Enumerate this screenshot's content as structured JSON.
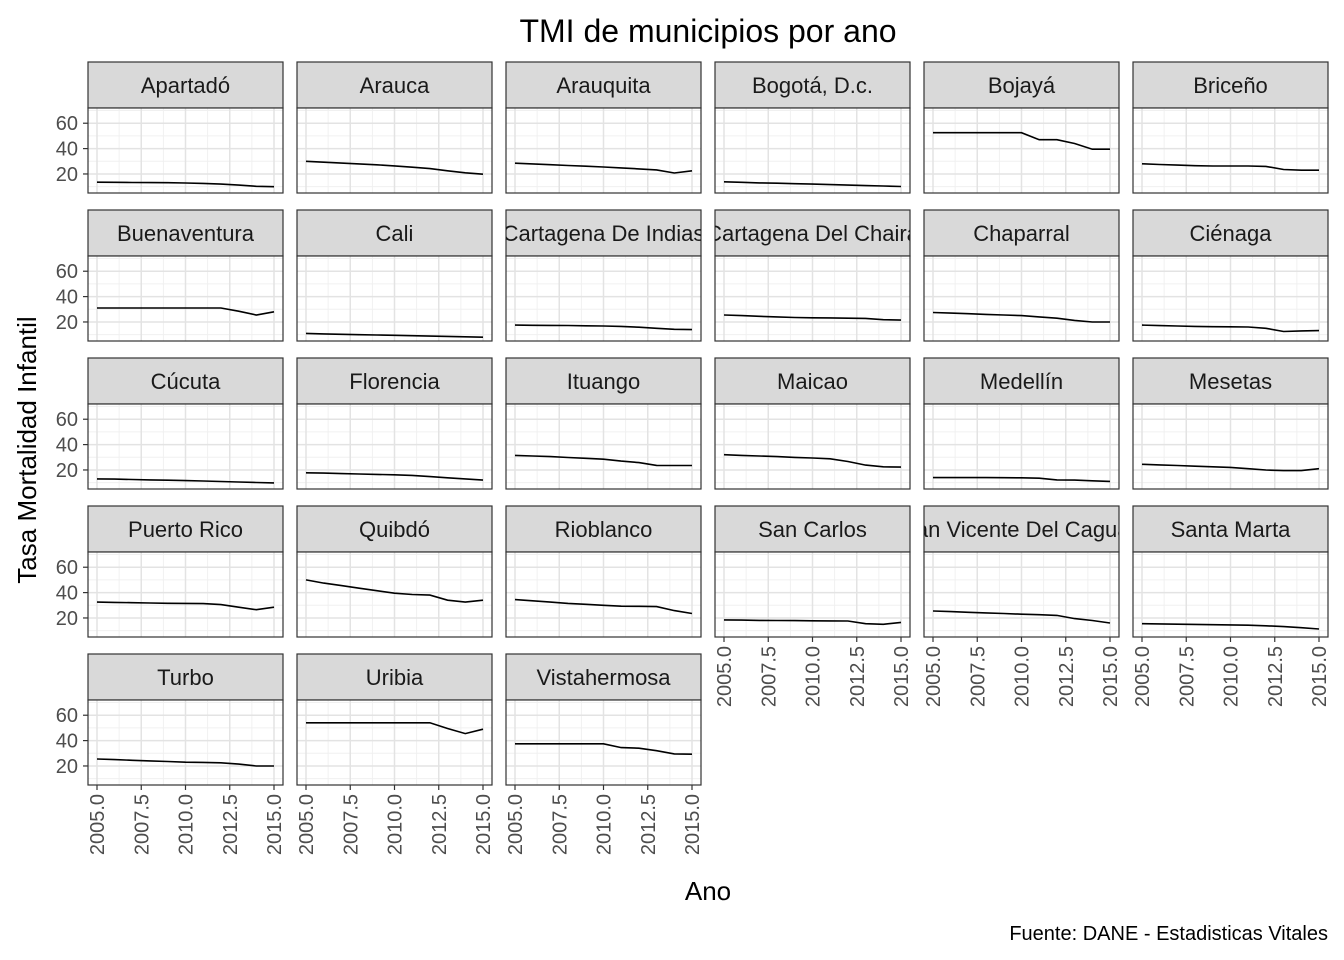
{
  "chart_data": {
    "type": "line",
    "title": "TMI de municipios por ano",
    "xlabel": "Ano",
    "ylabel": "Tasa Mortalidad Infantil",
    "caption": "Fuente: DANE - Estadisticas Vitales",
    "xlim": [
      2005,
      2015
    ],
    "ylim": [
      5,
      72
    ],
    "x_ticks": [
      2005,
      2007.5,
      2010,
      2012.5,
      2015
    ],
    "x_tick_labels": [
      "2005.0",
      "2007.5",
      "2010.0",
      "2012.5",
      "2015.0"
    ],
    "y_ticks": [
      20,
      40,
      60
    ],
    "y_tick_labels": [
      "20",
      "40",
      "60"
    ],
    "grid": true,
    "facet_columns": 6,
    "x": [
      2005,
      2006,
      2007,
      2008,
      2009,
      2010,
      2011,
      2012,
      2013,
      2014,
      2015
    ],
    "series": [
      {
        "name": "Apartadó",
        "values": [
          13.5,
          13.4,
          13.3,
          13.2,
          13.1,
          12.9,
          12.6,
          12.0,
          11.2,
          10.3,
          10.0
        ]
      },
      {
        "name": "Arauca",
        "values": [
          30.0,
          29.3,
          28.6,
          27.9,
          27.2,
          26.4,
          25.3,
          24.2,
          22.5,
          20.9,
          19.8
        ]
      },
      {
        "name": "Arauquita",
        "values": [
          28.5,
          27.9,
          27.3,
          26.7,
          26.1,
          25.5,
          24.8,
          24.0,
          23.2,
          20.8,
          22.5
        ]
      },
      {
        "name": "Bogotá, D.c.",
        "values": [
          13.8,
          13.4,
          13.0,
          12.7,
          12.3,
          12.0,
          11.6,
          11.2,
          10.8,
          10.5,
          10.1
        ]
      },
      {
        "name": "Bojayá",
        "values": [
          52.5,
          52.5,
          52.5,
          52.5,
          52.5,
          52.5,
          47.0,
          47.0,
          44.0,
          39.5,
          39.5
        ]
      },
      {
        "name": "Briceño",
        "values": [
          28.0,
          27.5,
          27.0,
          26.5,
          26.3,
          26.3,
          26.3,
          26.0,
          23.5,
          23.0,
          23.0
        ]
      },
      {
        "name": "Buenaventura",
        "values": [
          31.0,
          31.0,
          31.0,
          31.0,
          31.0,
          31.0,
          31.0,
          31.0,
          28.5,
          25.5,
          28.0
        ]
      },
      {
        "name": "Cali",
        "values": [
          11.0,
          10.6,
          10.3,
          10.0,
          9.7,
          9.5,
          9.2,
          8.9,
          8.6,
          8.3,
          8.0
        ]
      },
      {
        "name": "Cartagena De Indias",
        "values": [
          17.5,
          17.4,
          17.3,
          17.2,
          17.0,
          16.8,
          16.5,
          15.9,
          15.0,
          14.2,
          14.0
        ]
      },
      {
        "name": "Cartagena Del Chairá",
        "values": [
          25.5,
          25.0,
          24.5,
          24.0,
          23.5,
          23.3,
          23.2,
          23.0,
          22.8,
          21.8,
          21.5
        ]
      },
      {
        "name": "Chaparral",
        "values": [
          27.5,
          27.0,
          26.5,
          26.0,
          25.5,
          25.0,
          24.0,
          23.0,
          21.2,
          20.0,
          20.0
        ]
      },
      {
        "name": "Ciénaga",
        "values": [
          17.5,
          17.1,
          16.8,
          16.5,
          16.3,
          16.2,
          16.0,
          15.0,
          12.5,
          13.0,
          13.2
        ]
      },
      {
        "name": "Cúcuta",
        "values": [
          13.0,
          12.8,
          12.5,
          12.2,
          11.9,
          11.6,
          11.3,
          10.9,
          10.5,
          10.1,
          9.8
        ]
      },
      {
        "name": "Florencia",
        "values": [
          17.8,
          17.5,
          17.1,
          16.8,
          16.5,
          16.2,
          15.7,
          14.8,
          13.8,
          13.0,
          12.0
        ]
      },
      {
        "name": "Ituango",
        "values": [
          31.5,
          31.0,
          30.5,
          29.8,
          29.2,
          28.5,
          27.0,
          25.8,
          23.6,
          23.5,
          23.5
        ]
      },
      {
        "name": "Maicao",
        "values": [
          32.0,
          31.5,
          31.0,
          30.5,
          29.9,
          29.4,
          28.8,
          26.7,
          23.8,
          22.5,
          22.3
        ]
      },
      {
        "name": "Medellín",
        "values": [
          14.0,
          14.0,
          14.0,
          14.0,
          13.9,
          13.8,
          13.5,
          12.2,
          12.0,
          11.5,
          11.0
        ]
      },
      {
        "name": "Mesetas",
        "values": [
          24.5,
          24.0,
          23.5,
          23.0,
          22.5,
          22.0,
          21.0,
          20.0,
          19.5,
          19.5,
          21.0
        ]
      },
      {
        "name": "Puerto Rico",
        "values": [
          32.5,
          32.3,
          32.0,
          31.8,
          31.6,
          31.5,
          31.3,
          30.5,
          28.5,
          26.5,
          28.5
        ]
      },
      {
        "name": "Quibdó",
        "values": [
          50.0,
          47.5,
          45.5,
          43.5,
          41.5,
          39.5,
          38.5,
          38.0,
          34.0,
          32.5,
          34.0
        ]
      },
      {
        "name": "Rioblanco",
        "values": [
          34.5,
          33.5,
          32.5,
          31.5,
          30.8,
          30.0,
          29.3,
          29.2,
          29.0,
          25.8,
          23.5
        ]
      },
      {
        "name": "San Carlos",
        "values": [
          18.5,
          18.3,
          18.1,
          18.0,
          17.9,
          17.8,
          17.7,
          17.6,
          15.5,
          15.0,
          16.5
        ]
      },
      {
        "name": "San Vicente Del Caguán",
        "values": [
          25.5,
          25.0,
          24.5,
          24.0,
          23.5,
          23.0,
          22.6,
          22.0,
          19.5,
          18.0,
          16.0
        ]
      },
      {
        "name": "Santa Marta",
        "values": [
          15.5,
          15.3,
          15.1,
          14.9,
          14.7,
          14.5,
          14.3,
          13.8,
          13.2,
          12.3,
          11.3
        ]
      },
      {
        "name": "Turbo",
        "values": [
          25.5,
          25.0,
          24.5,
          24.0,
          23.5,
          23.0,
          22.8,
          22.5,
          21.5,
          20.0,
          20.0
        ]
      },
      {
        "name": "Uribia",
        "values": [
          54.0,
          54.0,
          54.0,
          54.0,
          54.0,
          54.0,
          54.0,
          54.0,
          49.5,
          45.5,
          49.0
        ]
      },
      {
        "name": "Vistahermosa",
        "values": [
          37.5,
          37.5,
          37.5,
          37.5,
          37.5,
          37.5,
          34.5,
          34.0,
          32.0,
          29.5,
          29.3
        ]
      }
    ]
  }
}
